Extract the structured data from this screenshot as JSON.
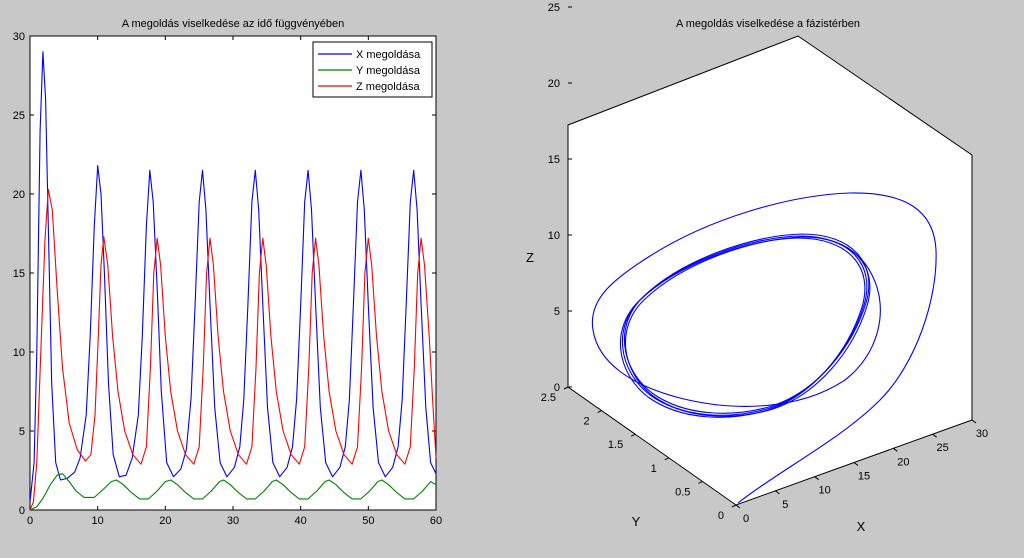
{
  "chart_data": [
    {
      "type": "line",
      "title": "A megoldás viselkedése az idő függvényében",
      "xlim": [
        0,
        60
      ],
      "ylim": [
        0,
        30
      ],
      "xticks": [
        0,
        10,
        20,
        30,
        40,
        50,
        60
      ],
      "yticks": [
        0,
        5,
        10,
        15,
        20,
        25,
        30
      ],
      "legend_position": "top-right",
      "series": [
        {
          "name": "X megoldása",
          "color": "#0000ff",
          "points": [
            [
              0,
              0.5
            ],
            [
              0.6,
              3
            ],
            [
              1,
              10
            ],
            [
              1.5,
              24
            ],
            [
              1.9,
              29
            ],
            [
              2.3,
              26
            ],
            [
              2.7,
              18
            ],
            [
              3.2,
              8
            ],
            [
              3.8,
              3
            ],
            [
              4.5,
              1.9
            ],
            [
              5.5,
              2
            ],
            [
              6.6,
              2.4
            ],
            [
              7.4,
              3.3
            ],
            [
              8.3,
              6
            ],
            [
              8.9,
              11
            ],
            [
              9.5,
              18
            ],
            [
              10,
              21.8
            ],
            [
              10.5,
              20
            ],
            [
              11,
              15
            ],
            [
              11.6,
              8
            ],
            [
              12.3,
              3.5
            ],
            [
              13.2,
              2.1
            ],
            [
              14.2,
              2.2
            ],
            [
              15.1,
              3.3
            ],
            [
              16,
              6
            ],
            [
              16.6,
              11
            ],
            [
              17.2,
              18
            ],
            [
              17.7,
              21.5
            ],
            [
              18.2,
              19.5
            ],
            [
              18.8,
              14
            ],
            [
              19.4,
              7.5
            ],
            [
              20.2,
              3
            ],
            [
              21.2,
              2.1
            ],
            [
              22.3,
              2.6
            ],
            [
              23.1,
              3.8
            ],
            [
              23.8,
              7
            ],
            [
              24.4,
              13
            ],
            [
              25,
              19.5
            ],
            [
              25.5,
              21.5
            ],
            [
              26,
              19
            ],
            [
              26.6,
              13
            ],
            [
              27.3,
              6.5
            ],
            [
              28.1,
              3
            ],
            [
              29.1,
              2.1
            ],
            [
              30.2,
              2.7
            ],
            [
              31,
              4
            ],
            [
              31.6,
              7
            ],
            [
              32.2,
              13
            ],
            [
              32.8,
              19.5
            ],
            [
              33.3,
              21.5
            ],
            [
              33.8,
              19
            ],
            [
              34.4,
              13
            ],
            [
              35.1,
              6.5
            ],
            [
              35.9,
              3
            ],
            [
              36.9,
              2.1
            ],
            [
              38,
              2.7
            ],
            [
              38.8,
              4
            ],
            [
              39.4,
              7
            ],
            [
              40,
              13
            ],
            [
              40.6,
              19.5
            ],
            [
              41.1,
              21.5
            ],
            [
              41.6,
              19
            ],
            [
              42.2,
              13
            ],
            [
              42.9,
              6.5
            ],
            [
              43.7,
              3
            ],
            [
              44.7,
              2.1
            ],
            [
              45.8,
              2.7
            ],
            [
              46.6,
              4
            ],
            [
              47.2,
              7
            ],
            [
              47.8,
              13
            ],
            [
              48.4,
              19.5
            ],
            [
              48.9,
              21.5
            ],
            [
              49.4,
              19
            ],
            [
              50,
              13
            ],
            [
              50.7,
              6.5
            ],
            [
              51.5,
              3
            ],
            [
              52.5,
              2.1
            ],
            [
              53.6,
              2.7
            ],
            [
              54.4,
              4
            ],
            [
              55,
              7
            ],
            [
              55.6,
              13
            ],
            [
              56.2,
              19.5
            ],
            [
              56.7,
              21.5
            ],
            [
              57.2,
              19
            ],
            [
              57.8,
              13
            ],
            [
              58.5,
              6.5
            ],
            [
              59.2,
              3
            ],
            [
              60,
              2.3
            ]
          ]
        },
        {
          "name": "Y megoldása",
          "color": "#008000",
          "points": [
            [
              0,
              0
            ],
            [
              1,
              0.2
            ],
            [
              2,
              0.8
            ],
            [
              3,
              1.6
            ],
            [
              4,
              2.2
            ],
            [
              4.8,
              2.3
            ],
            [
              5.8,
              1.8
            ],
            [
              6.8,
              1.2
            ],
            [
              8,
              0.8
            ],
            [
              9.5,
              0.8
            ],
            [
              10.8,
              1.3
            ],
            [
              12,
              1.8
            ],
            [
              12.8,
              1.9
            ],
            [
              13.8,
              1.6
            ],
            [
              15,
              1.1
            ],
            [
              16.2,
              0.7
            ],
            [
              17.5,
              0.7
            ],
            [
              18.8,
              1.2
            ],
            [
              20,
              1.8
            ],
            [
              20.8,
              1.9
            ],
            [
              21.8,
              1.6
            ],
            [
              23,
              1.1
            ],
            [
              24.2,
              0.7
            ],
            [
              25.5,
              0.7
            ],
            [
              26.8,
              1.2
            ],
            [
              28,
              1.8
            ],
            [
              28.6,
              1.9
            ],
            [
              29.6,
              1.6
            ],
            [
              30.8,
              1.1
            ],
            [
              32,
              0.7
            ],
            [
              33.3,
              0.7
            ],
            [
              34.6,
              1.2
            ],
            [
              35.8,
              1.8
            ],
            [
              36.4,
              1.9
            ],
            [
              37.4,
              1.6
            ],
            [
              38.6,
              1.1
            ],
            [
              39.8,
              0.7
            ],
            [
              41.1,
              0.7
            ],
            [
              42.4,
              1.2
            ],
            [
              43.6,
              1.8
            ],
            [
              44.2,
              1.9
            ],
            [
              45.2,
              1.6
            ],
            [
              46.4,
              1.1
            ],
            [
              47.6,
              0.7
            ],
            [
              48.9,
              0.7
            ],
            [
              50.2,
              1.2
            ],
            [
              51.4,
              1.8
            ],
            [
              52,
              1.9
            ],
            [
              53,
              1.6
            ],
            [
              54.2,
              1.1
            ],
            [
              55.4,
              0.7
            ],
            [
              56.7,
              0.7
            ],
            [
              58,
              1.2
            ],
            [
              59.2,
              1.8
            ],
            [
              60,
              1.6
            ]
          ]
        },
        {
          "name": "Z megoldása",
          "color": "#ff0000",
          "points": [
            [
              0,
              0
            ],
            [
              0.5,
              0.5
            ],
            [
              1,
              3
            ],
            [
              1.6,
              10
            ],
            [
              2.2,
              17
            ],
            [
              2.7,
              20.3
            ],
            [
              3.3,
              19
            ],
            [
              4,
              14
            ],
            [
              4.8,
              9
            ],
            [
              5.8,
              5.5
            ],
            [
              7,
              3.8
            ],
            [
              8.2,
              3.1
            ],
            [
              9,
              3.5
            ],
            [
              9.6,
              6
            ],
            [
              10.1,
              11
            ],
            [
              10.5,
              15.5
            ],
            [
              10.9,
              17.3
            ],
            [
              11.5,
              15.5
            ],
            [
              12.2,
              11
            ],
            [
              13,
              7.5
            ],
            [
              14,
              5
            ],
            [
              15.2,
              3.5
            ],
            [
              16.4,
              2.9
            ],
            [
              17.2,
              4
            ],
            [
              17.8,
              9
            ],
            [
              18.3,
              15
            ],
            [
              18.8,
              17.2
            ],
            [
              19.3,
              15.5
            ],
            [
              20,
              11
            ],
            [
              20.8,
              7.5
            ],
            [
              21.8,
              5
            ],
            [
              23,
              3.5
            ],
            [
              24.2,
              2.9
            ],
            [
              25,
              4
            ],
            [
              25.6,
              9
            ],
            [
              26.1,
              15
            ],
            [
              26.6,
              17.2
            ],
            [
              27.1,
              15.5
            ],
            [
              27.8,
              11
            ],
            [
              28.6,
              7.5
            ],
            [
              29.6,
              5
            ],
            [
              30.8,
              3.5
            ],
            [
              32,
              2.9
            ],
            [
              32.8,
              4
            ],
            [
              33.4,
              9
            ],
            [
              33.9,
              15
            ],
            [
              34.4,
              17.2
            ],
            [
              34.9,
              15.5
            ],
            [
              35.6,
              11
            ],
            [
              36.4,
              7.5
            ],
            [
              37.4,
              5
            ],
            [
              38.6,
              3.5
            ],
            [
              39.8,
              2.9
            ],
            [
              40.6,
              4
            ],
            [
              41.2,
              9
            ],
            [
              41.7,
              15
            ],
            [
              42.2,
              17.2
            ],
            [
              42.7,
              15.5
            ],
            [
              43.4,
              11
            ],
            [
              44.2,
              7.5
            ],
            [
              45.2,
              5
            ],
            [
              46.4,
              3.5
            ],
            [
              47.6,
              2.9
            ],
            [
              48.4,
              4
            ],
            [
              49,
              9
            ],
            [
              49.5,
              15
            ],
            [
              50,
              17.2
            ],
            [
              50.5,
              15.5
            ],
            [
              51.2,
              11
            ],
            [
              52,
              7.5
            ],
            [
              53,
              5
            ],
            [
              54.2,
              3.5
            ],
            [
              55.4,
              2.9
            ],
            [
              56.2,
              4
            ],
            [
              56.8,
              9
            ],
            [
              57.3,
              15
            ],
            [
              57.8,
              17.2
            ],
            [
              58.3,
              15.5
            ],
            [
              59,
              11
            ],
            [
              59.5,
              7
            ],
            [
              60,
              3.3
            ]
          ]
        }
      ]
    },
    {
      "type": "line3d",
      "title": "A megoldás viselkedése a fázistérben",
      "xlabel": "X",
      "ylabel": "Y",
      "zlabel": "Z",
      "xlim": [
        0,
        30
      ],
      "ylim": [
        0,
        2.5
      ],
      "zlim": [
        0,
        25
      ],
      "xticks": [
        "0",
        "5",
        "10",
        "15",
        "20",
        "25",
        "30"
      ],
      "yticks": [
        "0",
        "0.5",
        "1",
        "1.5",
        "2",
        "2.5"
      ],
      "zticks": [
        "0",
        "5",
        "10",
        "15",
        "20",
        "25"
      ],
      "series": [
        {
          "name": "",
          "color": "#0000ff"
        }
      ]
    }
  ]
}
